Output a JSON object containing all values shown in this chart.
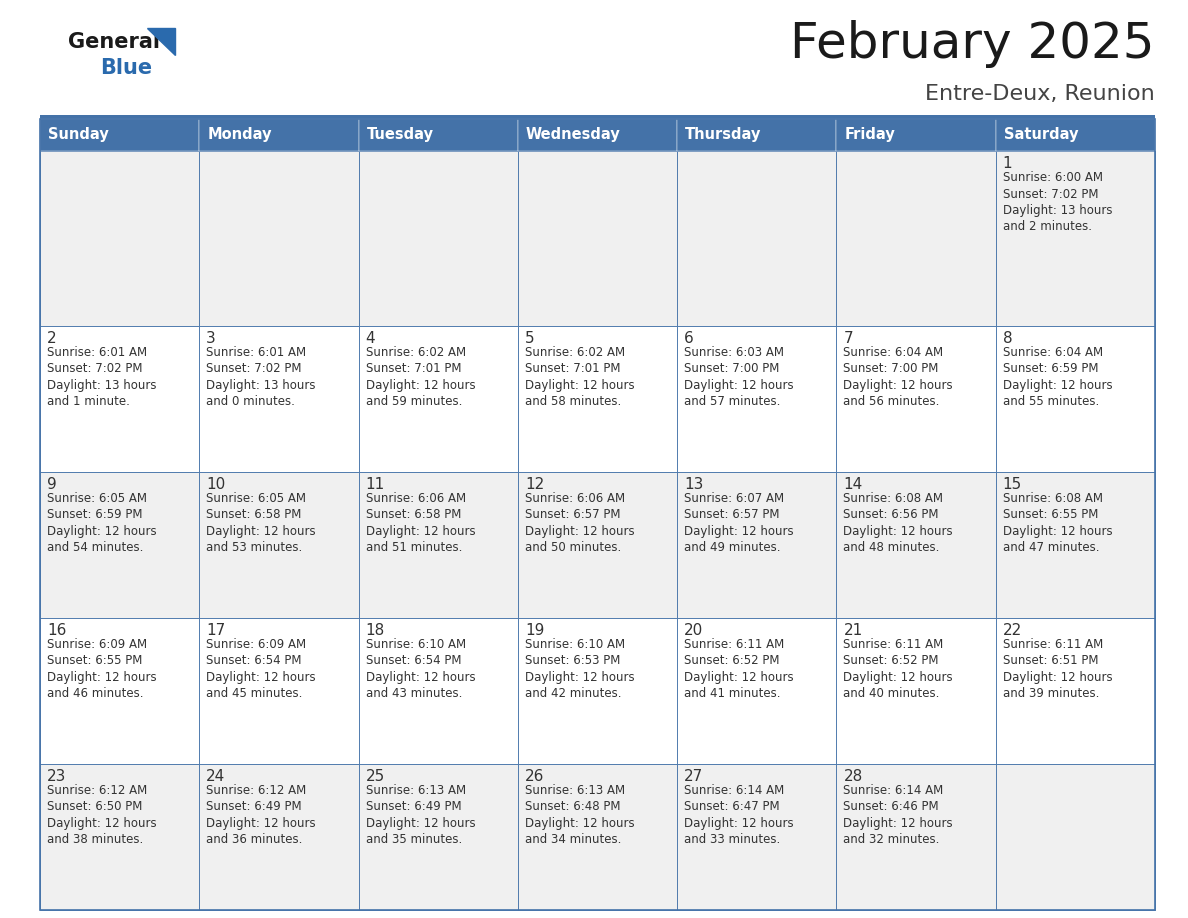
{
  "title": "February 2025",
  "subtitle": "Entre-Deux, Reunion",
  "days_of_week": [
    "Sunday",
    "Monday",
    "Tuesday",
    "Wednesday",
    "Thursday",
    "Friday",
    "Saturday"
  ],
  "header_bg": "#4472a8",
  "header_text": "#ffffff",
  "cell_bg_row0": "#f0f0f0",
  "cell_bg_odd": "#f0f0f0",
  "cell_bg_even": "#ffffff",
  "border_color": "#4472a8",
  "day_number_color": "#333333",
  "text_color": "#333333",
  "title_color": "#1a1a1a",
  "subtitle_color": "#444444",
  "logo_general_color": "#1a1a1a",
  "logo_blue_color": "#2a6aad",
  "calendar_data": [
    [
      null,
      null,
      null,
      null,
      null,
      null,
      {
        "day": 1,
        "sunrise": "6:00 AM",
        "sunset": "7:02 PM",
        "daylight": "13 hours\nand 2 minutes."
      }
    ],
    [
      {
        "day": 2,
        "sunrise": "6:01 AM",
        "sunset": "7:02 PM",
        "daylight": "13 hours\nand 1 minute."
      },
      {
        "day": 3,
        "sunrise": "6:01 AM",
        "sunset": "7:02 PM",
        "daylight": "13 hours\nand 0 minutes."
      },
      {
        "day": 4,
        "sunrise": "6:02 AM",
        "sunset": "7:01 PM",
        "daylight": "12 hours\nand 59 minutes."
      },
      {
        "day": 5,
        "sunrise": "6:02 AM",
        "sunset": "7:01 PM",
        "daylight": "12 hours\nand 58 minutes."
      },
      {
        "day": 6,
        "sunrise": "6:03 AM",
        "sunset": "7:00 PM",
        "daylight": "12 hours\nand 57 minutes."
      },
      {
        "day": 7,
        "sunrise": "6:04 AM",
        "sunset": "7:00 PM",
        "daylight": "12 hours\nand 56 minutes."
      },
      {
        "day": 8,
        "sunrise": "6:04 AM",
        "sunset": "6:59 PM",
        "daylight": "12 hours\nand 55 minutes."
      }
    ],
    [
      {
        "day": 9,
        "sunrise": "6:05 AM",
        "sunset": "6:59 PM",
        "daylight": "12 hours\nand 54 minutes."
      },
      {
        "day": 10,
        "sunrise": "6:05 AM",
        "sunset": "6:58 PM",
        "daylight": "12 hours\nand 53 minutes."
      },
      {
        "day": 11,
        "sunrise": "6:06 AM",
        "sunset": "6:58 PM",
        "daylight": "12 hours\nand 51 minutes."
      },
      {
        "day": 12,
        "sunrise": "6:06 AM",
        "sunset": "6:57 PM",
        "daylight": "12 hours\nand 50 minutes."
      },
      {
        "day": 13,
        "sunrise": "6:07 AM",
        "sunset": "6:57 PM",
        "daylight": "12 hours\nand 49 minutes."
      },
      {
        "day": 14,
        "sunrise": "6:08 AM",
        "sunset": "6:56 PM",
        "daylight": "12 hours\nand 48 minutes."
      },
      {
        "day": 15,
        "sunrise": "6:08 AM",
        "sunset": "6:55 PM",
        "daylight": "12 hours\nand 47 minutes."
      }
    ],
    [
      {
        "day": 16,
        "sunrise": "6:09 AM",
        "sunset": "6:55 PM",
        "daylight": "12 hours\nand 46 minutes."
      },
      {
        "day": 17,
        "sunrise": "6:09 AM",
        "sunset": "6:54 PM",
        "daylight": "12 hours\nand 45 minutes."
      },
      {
        "day": 18,
        "sunrise": "6:10 AM",
        "sunset": "6:54 PM",
        "daylight": "12 hours\nand 43 minutes."
      },
      {
        "day": 19,
        "sunrise": "6:10 AM",
        "sunset": "6:53 PM",
        "daylight": "12 hours\nand 42 minutes."
      },
      {
        "day": 20,
        "sunrise": "6:11 AM",
        "sunset": "6:52 PM",
        "daylight": "12 hours\nand 41 minutes."
      },
      {
        "day": 21,
        "sunrise": "6:11 AM",
        "sunset": "6:52 PM",
        "daylight": "12 hours\nand 40 minutes."
      },
      {
        "day": 22,
        "sunrise": "6:11 AM",
        "sunset": "6:51 PM",
        "daylight": "12 hours\nand 39 minutes."
      }
    ],
    [
      {
        "day": 23,
        "sunrise": "6:12 AM",
        "sunset": "6:50 PM",
        "daylight": "12 hours\nand 38 minutes."
      },
      {
        "day": 24,
        "sunrise": "6:12 AM",
        "sunset": "6:49 PM",
        "daylight": "12 hours\nand 36 minutes."
      },
      {
        "day": 25,
        "sunrise": "6:13 AM",
        "sunset": "6:49 PM",
        "daylight": "12 hours\nand 35 minutes."
      },
      {
        "day": 26,
        "sunrise": "6:13 AM",
        "sunset": "6:48 PM",
        "daylight": "12 hours\nand 34 minutes."
      },
      {
        "day": 27,
        "sunrise": "6:14 AM",
        "sunset": "6:47 PM",
        "daylight": "12 hours\nand 33 minutes."
      },
      {
        "day": 28,
        "sunrise": "6:14 AM",
        "sunset": "6:46 PM",
        "daylight": "12 hours\nand 32 minutes."
      },
      null
    ]
  ]
}
